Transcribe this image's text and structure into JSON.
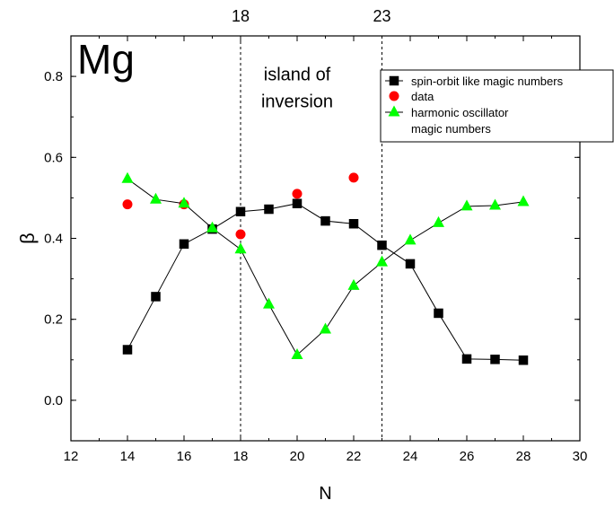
{
  "chart_data": {
    "type": "scatter",
    "title": "Mg",
    "xlabel": "N",
    "ylabel": "β",
    "xlim": [
      12,
      30
    ],
    "ylim": [
      -0.1,
      0.9
    ],
    "x_ticks": [
      12,
      14,
      16,
      18,
      20,
      22,
      24,
      26,
      28,
      30
    ],
    "x_tick_labels": [
      "12",
      "14",
      "16",
      "18",
      "20",
      "22",
      "24",
      "26",
      "28",
      "30"
    ],
    "y_ticks": [
      0.0,
      0.2,
      0.4,
      0.6,
      0.8
    ],
    "y_tick_labels": [
      "0.0",
      "0.2",
      "0.4",
      "0.6",
      "0.8"
    ],
    "grid": false,
    "legend_position": "top-right",
    "vertical_lines": [
      {
        "x": 18,
        "label": "18",
        "style": "dashed"
      },
      {
        "x": 23,
        "label": "23",
        "style": "dashed"
      }
    ],
    "annotations": [
      {
        "text_lines": [
          "island of",
          "inversion"
        ],
        "x": 20.0,
        "y": 0.79
      }
    ],
    "series": [
      {
        "name": "spin-orbit like magic numbers",
        "marker": "square",
        "color": "#000000",
        "line": true,
        "x": [
          14,
          15,
          16,
          17,
          18,
          19,
          20,
          21,
          22,
          23,
          24,
          25,
          26,
          27,
          28
        ],
        "y": [
          0.125,
          0.256,
          0.386,
          0.423,
          0.466,
          0.472,
          0.486,
          0.443,
          0.436,
          0.383,
          0.337,
          0.215,
          0.102,
          0.101,
          0.099
        ]
      },
      {
        "name": "data",
        "marker": "circle",
        "color": "#ff0000",
        "line": false,
        "x": [
          14,
          16,
          18,
          20,
          22
        ],
        "y": [
          0.484,
          0.484,
          0.41,
          0.51,
          0.55
        ]
      },
      {
        "name": "harmonic oscillator magic numbers",
        "legend_lines": [
          "harmonic oscillator",
          "magic numbers"
        ],
        "marker": "triangle",
        "color": "#00ff00",
        "line": true,
        "x": [
          14,
          15,
          16,
          17,
          18,
          19,
          20,
          21,
          22,
          23,
          24,
          25,
          26,
          27,
          28
        ],
        "y": [
          0.547,
          0.496,
          0.486,
          0.425,
          0.373,
          0.237,
          0.112,
          0.175,
          0.283,
          0.341,
          0.395,
          0.438,
          0.479,
          0.481,
          0.49
        ]
      }
    ]
  }
}
